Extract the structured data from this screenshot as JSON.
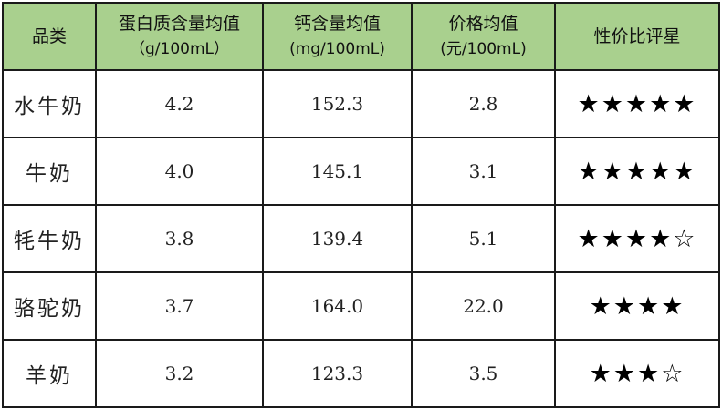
{
  "headers": [
    {
      "title": "品类",
      "unit": ""
    },
    {
      "title": "蛋白质含量均值",
      "unit": "（g/100mL）"
    },
    {
      "title": "钙含量均值",
      "unit": "(mg/100mL)"
    },
    {
      "title": "价格均值",
      "unit": "(元/100mL)"
    },
    {
      "title": "性价比评星",
      "unit": ""
    }
  ],
  "rows": [
    {
      "name": "水牛奶",
      "protein": "4.2",
      "calcium": "152.3",
      "price": "2.8",
      "stars": "★★★★★",
      "rating": 5
    },
    {
      "name": "牛奶",
      "protein": "4.0",
      "calcium": "145.1",
      "price": "3.1",
      "stars": "★★★★★",
      "rating": 5
    },
    {
      "name": "牦牛奶",
      "protein": "3.8",
      "calcium": "139.4",
      "price": "5.1",
      "stars": "★★★★☆",
      "rating": 4.5
    },
    {
      "name": "骆驼奶",
      "protein": "3.7",
      "calcium": "164.0",
      "price": "22.0",
      "stars": "★★★★",
      "rating": 4
    },
    {
      "name": "羊奶",
      "protein": "3.2",
      "calcium": "123.3",
      "price": "3.5",
      "stars": "★★★☆",
      "rating": 3.5
    }
  ],
  "colors": {
    "header_bg": "#a9d08e",
    "border": "#1a1a1a"
  }
}
